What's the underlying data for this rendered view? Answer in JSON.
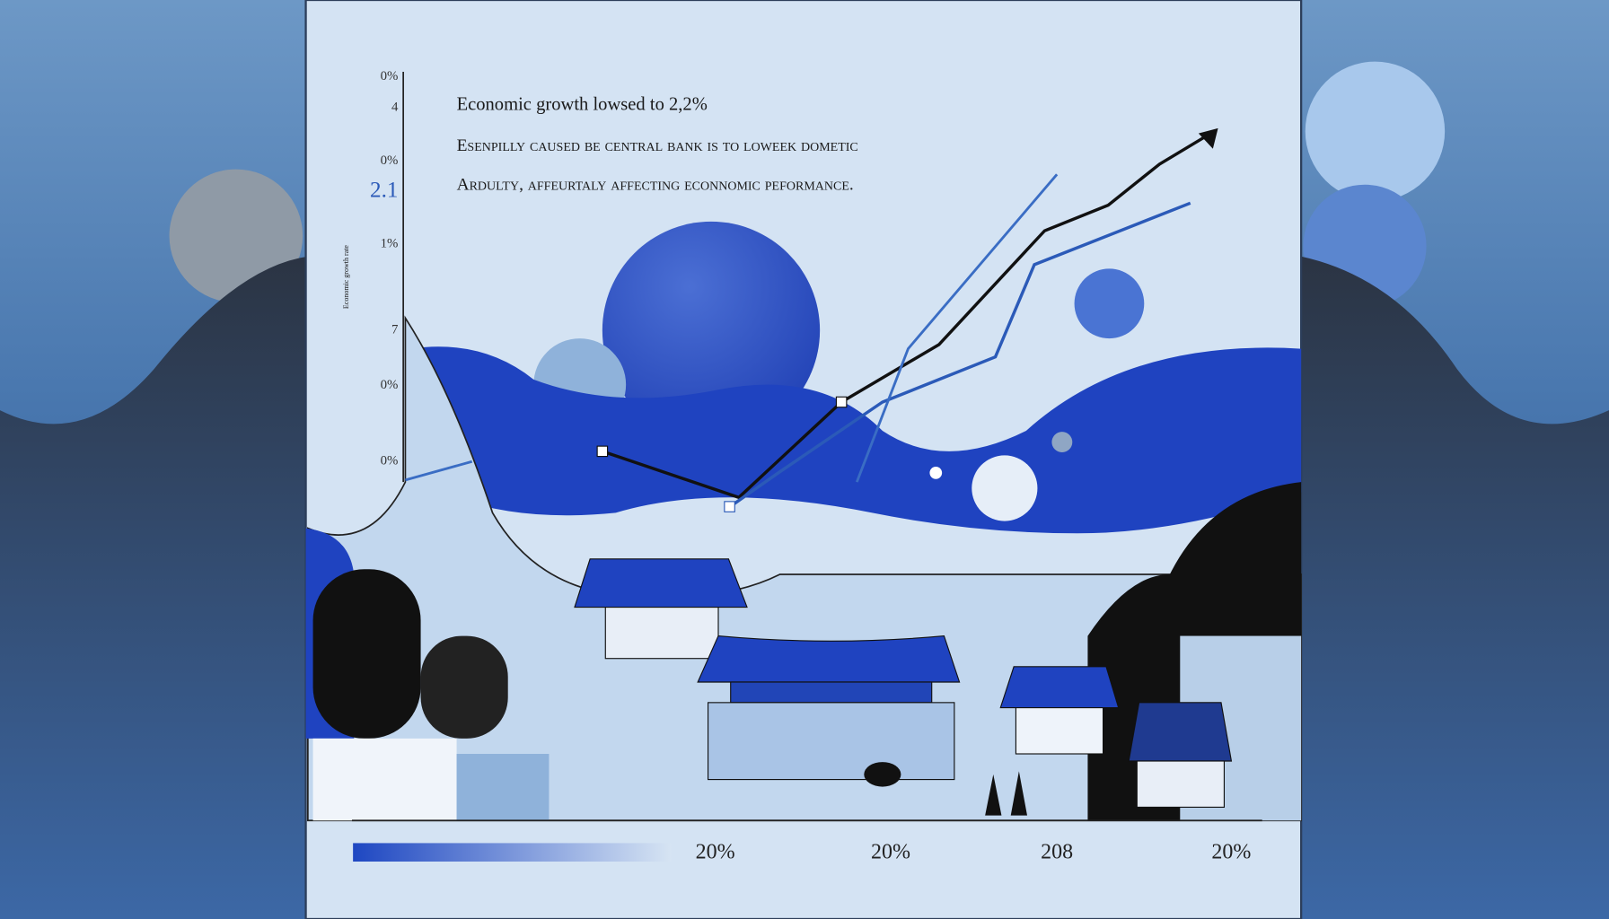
{
  "headline": "Economic growth lowsed to 2,2%",
  "body": [
    "Esenpilly caused be central bank is to loweek dometic",
    "Ardulty, affeurtaly affecting econnomic peformance."
  ],
  "axis_title": "Economic growth rate",
  "y_labels": [
    "0%",
    "4",
    "0%",
    "2.1",
    "1%",
    "7",
    "0%",
    "0%"
  ],
  "x_labels": [
    "20%",
    "20%",
    "208",
    "20%"
  ]
}
